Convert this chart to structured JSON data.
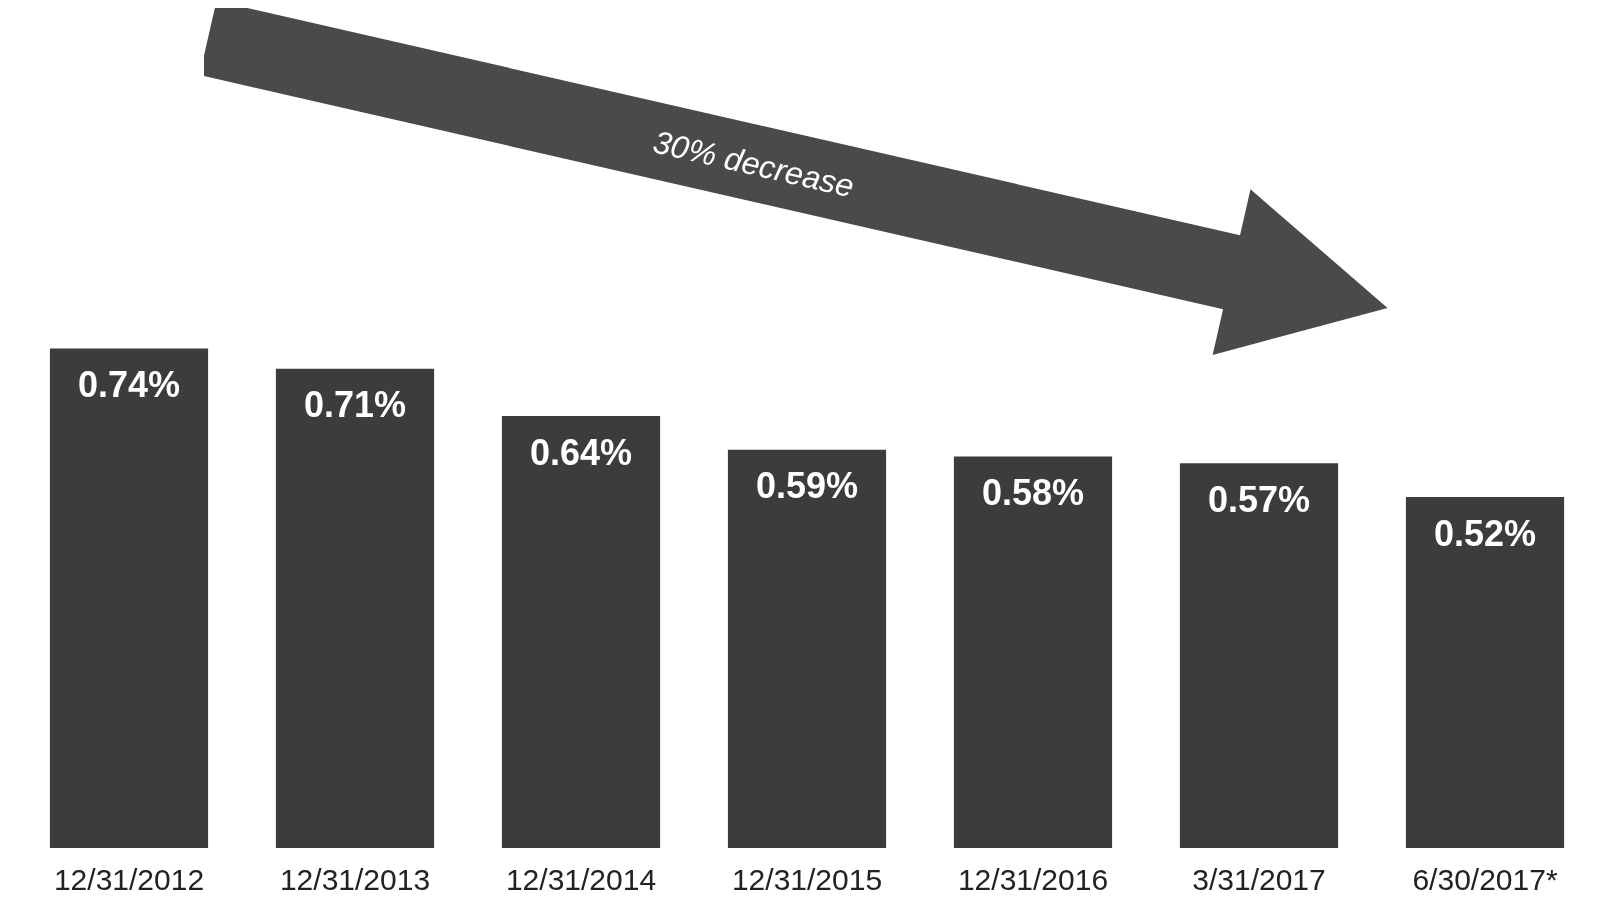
{
  "chart_data": {
    "type": "bar",
    "categories": [
      "12/31/2012",
      "12/31/2013",
      "12/31/2014",
      "12/31/2015",
      "12/31/2016",
      "3/31/2017",
      "6/30/2017*"
    ],
    "values": [
      0.74,
      0.71,
      0.64,
      0.59,
      0.58,
      0.57,
      0.52
    ],
    "value_labels": [
      "0.74%",
      "0.71%",
      "0.64%",
      "0.59%",
      "0.58%",
      "0.57%",
      "0.52%"
    ],
    "color": "#3c3c3c",
    "grid": false,
    "annotations": [
      "30% decrease"
    ]
  }
}
